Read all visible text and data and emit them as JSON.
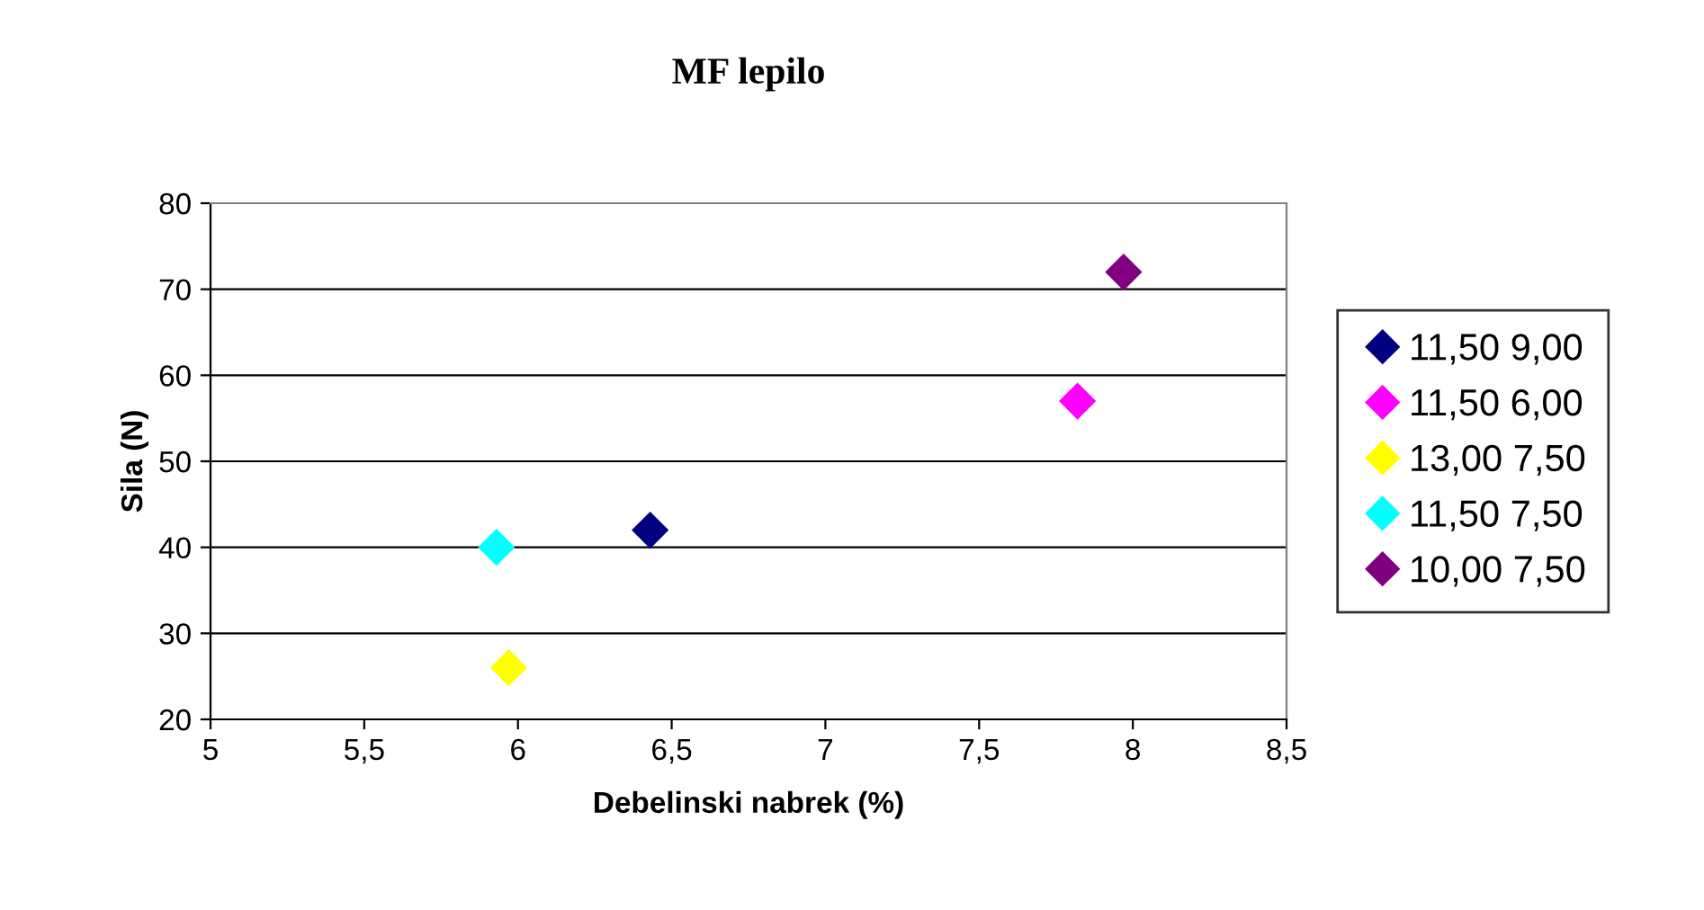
{
  "chart_data": {
    "type": "scatter",
    "title": "MF lepilo",
    "xlabel": "Debelinski nabrek (%)",
    "ylabel": "Sila (N)",
    "series": [
      {
        "name": "11,50 9,00",
        "color": "#000080",
        "x": [
          6.43
        ],
        "values": [
          42
        ]
      },
      {
        "name": "11,50 6,00",
        "color": "#ff00ff",
        "x": [
          7.82
        ],
        "values": [
          57
        ]
      },
      {
        "name": "13,00 7,50",
        "color": "#ffff00",
        "x": [
          5.97
        ],
        "values": [
          26
        ]
      },
      {
        "name": "11,50 7,50",
        "color": "#00ffff",
        "x": [
          5.93
        ],
        "values": [
          40
        ]
      },
      {
        "name": "10,00 7,50",
        "color": "#800080",
        "x": [
          7.97
        ],
        "values": [
          72
        ]
      }
    ],
    "xlim": [
      5,
      8.5
    ],
    "xticks": [
      5,
      {
        "value": 5.5,
        "label": "5,5"
      },
      6,
      {
        "value": 6.5,
        "label": "6,5"
      },
      7,
      {
        "value": 7.5,
        "label": "7,5"
      },
      8,
      {
        "value": 8.5,
        "label": "8,5"
      }
    ],
    "ylim": [
      20,
      80
    ],
    "yticks": [
      20,
      30,
      40,
      50,
      60,
      70,
      80
    ],
    "grid": "y",
    "legend": "right",
    "marker": "diamond"
  }
}
